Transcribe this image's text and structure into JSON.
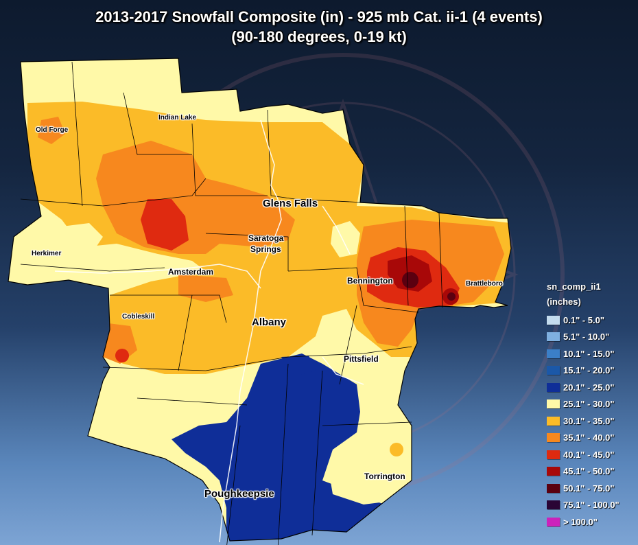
{
  "title": {
    "line1": "2013-2017 Snowfall Composite (in) - 925 mb Cat. ii-1 (4 events)",
    "line2": "(90-180 degrees, 0-19 kt)"
  },
  "watermark": "NATIONAL WEATHER SERVICE",
  "cities": {
    "old_forge": "Old Forge",
    "indian_lake": "Indian Lake",
    "glens_falls": "Glens Falls",
    "saratoga_springs_1": "Saratoga",
    "saratoga_springs_2": "Springs",
    "herkimer": "Herkimer",
    "amsterdam": "Amsterdam",
    "bennington": "Bennington",
    "brattleboro": "Brattleboro",
    "cobleskill": "Cobleskill",
    "albany": "Albany",
    "pittsfield": "Pittsfield",
    "torrington": "Torrington",
    "poughkeepsie": "Poughkeepsie"
  },
  "legend": {
    "title": "sn_comp_ii1",
    "units": "(inches)",
    "items": [
      {
        "label": "0.1\" - 5.0\"",
        "color": "#c4dcee"
      },
      {
        "label": "5.1\" - 10.0\"",
        "color": "#7fb0e0"
      },
      {
        "label": "10.1\" - 15.0\"",
        "color": "#3b7fc8"
      },
      {
        "label": "15.1\" - 20.0\"",
        "color": "#1b58a8"
      },
      {
        "label": "20.1\" - 25.0\"",
        "color": "#0f2e98"
      },
      {
        "label": "25.1\" - 30.0\"",
        "color": "#fff9a8"
      },
      {
        "label": "30.1\" - 35.0\"",
        "color": "#fbbb28"
      },
      {
        "label": "35.1\" - 40.0\"",
        "color": "#f7881e"
      },
      {
        "label": "40.1\" - 45.0\"",
        "color": "#df2a10"
      },
      {
        "label": "45.1\" - 50.0\"",
        "color": "#a80808"
      },
      {
        "label": "50.1\" - 75.0\"",
        "color": "#5a0010"
      },
      {
        "label": "75.1\" - 100.0\"",
        "color": "#2a0535"
      },
      {
        "label": "> 100.0\"",
        "color": "#cc22bb"
      }
    ]
  }
}
